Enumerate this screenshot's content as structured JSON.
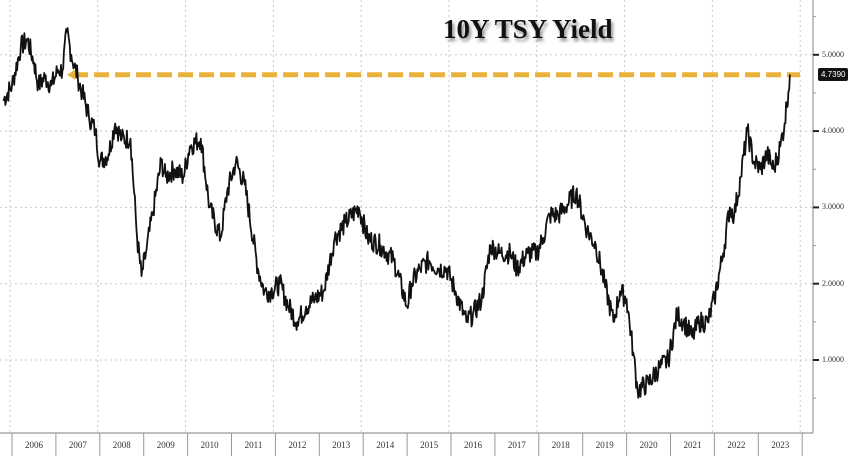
{
  "chart_data": {
    "type": "line",
    "title": "10Y TSY Yield",
    "xlabel": "",
    "ylabel": "",
    "ylim": [
      0.3,
      5.6
    ],
    "grid": true,
    "legend": "none",
    "x_tick_labels": [
      "2006",
      "2007",
      "2008",
      "2009",
      "2010",
      "2011",
      "2012",
      "2013",
      "2014",
      "2015",
      "2016",
      "2017",
      "2018",
      "2019",
      "2020",
      "2021",
      "2022",
      "2023"
    ],
    "y_tick_labels": [
      "1.0000",
      "2.0000",
      "3.0000",
      "4.0000",
      "5.0000"
    ],
    "y_ticks": [
      1.0,
      2.0,
      3.0,
      4.0,
      5.0
    ],
    "last_value_label": "4.7390",
    "reference_line": {
      "value": 4.739,
      "style": "dashed",
      "color": "#e8b23a",
      "start_x": "2007.3"
    },
    "series": [
      {
        "name": "10Y TSY Yield",
        "color": "#111111",
        "x": [
          2005.8,
          2006.0,
          2006.2,
          2006.35,
          2006.5,
          2006.6,
          2006.75,
          2006.9,
          2007.05,
          2007.15,
          2007.25,
          2007.35,
          2007.5,
          2007.6,
          2007.75,
          2007.9,
          2008.0,
          2008.2,
          2008.35,
          2008.5,
          2008.7,
          2008.85,
          2008.95,
          2009.05,
          2009.2,
          2009.4,
          2009.5,
          2009.7,
          2009.9,
          2010.05,
          2010.3,
          2010.5,
          2010.75,
          2010.9,
          2011.1,
          2011.3,
          2011.6,
          2011.75,
          2011.9,
          2012.1,
          2012.3,
          2012.5,
          2012.7,
          2012.9,
          2013.1,
          2013.35,
          2013.6,
          2013.9,
          2014.1,
          2014.4,
          2014.7,
          2015.0,
          2015.1,
          2015.3,
          2015.5,
          2015.7,
          2015.9,
          2016.1,
          2016.35,
          2016.5,
          2016.7,
          2016.9,
          2017.1,
          2017.35,
          2017.5,
          2017.75,
          2017.95,
          2018.1,
          2018.25,
          2018.45,
          2018.6,
          2018.85,
          2019.1,
          2019.3,
          2019.5,
          2019.7,
          2019.85,
          2020.0,
          2020.15,
          2020.25,
          2020.5,
          2020.75,
          2020.95,
          2021.15,
          2021.3,
          2021.5,
          2021.65,
          2021.85,
          2022.0,
          2022.2,
          2022.35,
          2022.45,
          2022.6,
          2022.75,
          2022.9,
          2023.05,
          2023.2,
          2023.35,
          2023.5,
          2023.6,
          2023.72
        ],
        "values": [
          4.4,
          4.6,
          5.1,
          5.2,
          4.9,
          4.6,
          4.7,
          4.6,
          4.8,
          4.8,
          5.3,
          5.0,
          4.7,
          4.5,
          4.2,
          4.0,
          3.6,
          3.7,
          4.1,
          3.9,
          3.9,
          2.6,
          2.1,
          2.4,
          2.9,
          3.6,
          3.4,
          3.5,
          3.4,
          3.8,
          3.9,
          3.0,
          2.6,
          3.2,
          3.6,
          3.3,
          2.2,
          1.9,
          1.9,
          2.0,
          1.7,
          1.5,
          1.7,
          1.8,
          1.9,
          2.6,
          2.8,
          3.0,
          2.6,
          2.5,
          2.3,
          1.7,
          2.0,
          2.2,
          2.3,
          2.2,
          2.2,
          1.9,
          1.5,
          1.6,
          1.8,
          2.5,
          2.4,
          2.4,
          2.2,
          2.4,
          2.4,
          2.6,
          2.9,
          2.9,
          3.0,
          3.2,
          2.7,
          2.5,
          2.0,
          1.5,
          1.9,
          1.8,
          1.1,
          0.6,
          0.7,
          0.9,
          1.0,
          1.6,
          1.5,
          1.3,
          1.5,
          1.5,
          1.8,
          2.4,
          3.0,
          2.9,
          3.4,
          4.0,
          3.6,
          3.5,
          3.7,
          3.5,
          3.8,
          4.1,
          4.74
        ]
      }
    ]
  }
}
